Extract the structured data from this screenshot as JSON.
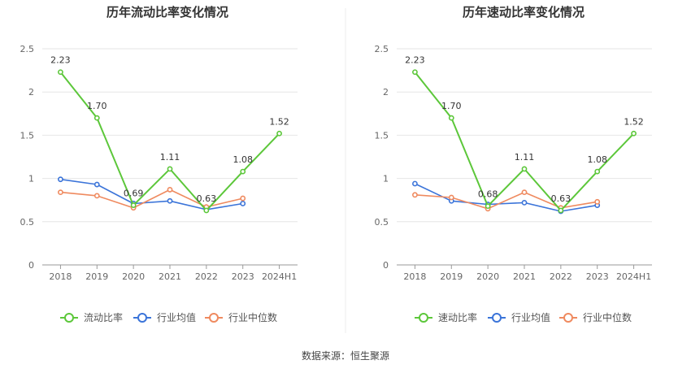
{
  "source": "数据来源：恒生聚源",
  "colors": {
    "main": "#5cc73a",
    "avg": "#3b74d9",
    "median": "#ef8a5f",
    "grid": "#e6e6e6",
    "axis": "#999999",
    "divider": "#eeeeee"
  },
  "chart_data": [
    {
      "type": "line",
      "title": "历年流动比率变化情况",
      "categories": [
        "2018",
        "2019",
        "2020",
        "2021",
        "2022",
        "2023",
        "2024H1"
      ],
      "ylim": [
        0,
        2.5
      ],
      "yticks": [
        "0",
        "0.5",
        "1",
        "1.5",
        "2",
        "2.5"
      ],
      "grid": true,
      "legend_position": "bottom",
      "series": [
        {
          "name": "流动比率",
          "values": [
            2.23,
            1.7,
            0.69,
            1.11,
            0.63,
            1.08,
            1.52
          ],
          "labels": [
            "2.23",
            "1.70",
            "0.69",
            "1.11",
            "0.63",
            "1.08",
            "1.52"
          ],
          "color_key": "main"
        },
        {
          "name": "行业均值",
          "values": [
            0.99,
            0.93,
            0.71,
            0.74,
            0.64,
            0.71,
            null
          ],
          "color_key": "avg"
        },
        {
          "name": "行业中位数",
          "values": [
            0.84,
            0.8,
            0.66,
            0.87,
            0.67,
            0.77,
            null
          ],
          "color_key": "median"
        }
      ]
    },
    {
      "type": "line",
      "title": "历年速动比率变化情况",
      "categories": [
        "2018",
        "2019",
        "2020",
        "2021",
        "2022",
        "2023",
        "2024H1"
      ],
      "ylim": [
        0,
        2.5
      ],
      "yticks": [
        "0",
        "0.5",
        "1",
        "1.5",
        "2",
        "2.5"
      ],
      "grid": true,
      "legend_position": "bottom",
      "series": [
        {
          "name": "速动比率",
          "values": [
            2.23,
            1.7,
            0.68,
            1.11,
            0.63,
            1.08,
            1.52
          ],
          "labels": [
            "2.23",
            "1.70",
            "0.68",
            "1.11",
            "0.63",
            "1.08",
            "1.52"
          ],
          "color_key": "main"
        },
        {
          "name": "行业均值",
          "values": [
            0.94,
            0.74,
            0.7,
            0.72,
            0.62,
            0.69,
            null
          ],
          "color_key": "avg"
        },
        {
          "name": "行业中位数",
          "values": [
            0.81,
            0.78,
            0.65,
            0.84,
            0.66,
            0.73,
            null
          ],
          "color_key": "median"
        }
      ]
    }
  ]
}
